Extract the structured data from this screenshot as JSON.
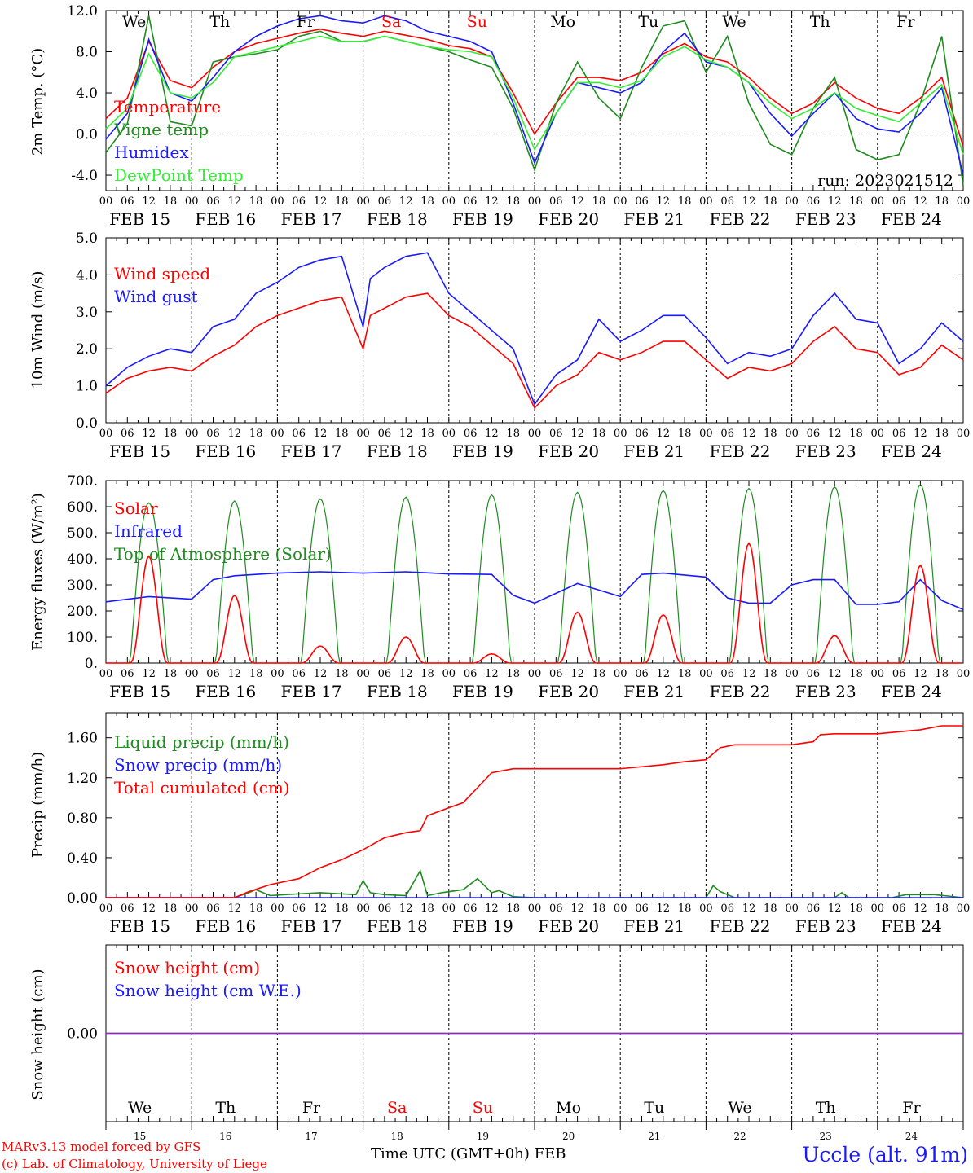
{
  "days": [
    {
      "date": "FEB 15",
      "weekday": "We",
      "day_num": "15",
      "weekend": false
    },
    {
      "date": "FEB 16",
      "weekday": "Th",
      "day_num": "16",
      "weekend": false
    },
    {
      "date": "FEB 17",
      "weekday": "Fr",
      "day_num": "17",
      "weekend": false
    },
    {
      "date": "FEB 18",
      "weekday": "Sa",
      "day_num": "18",
      "weekend": true
    },
    {
      "date": "FEB 19",
      "weekday": "Su",
      "day_num": "19",
      "weekend": true
    },
    {
      "date": "FEB 20",
      "weekday": "Mo",
      "day_num": "20",
      "weekend": false
    },
    {
      "date": "FEB 21",
      "weekday": "Tu",
      "day_num": "21",
      "weekend": false
    },
    {
      "date": "FEB 22",
      "weekday": "We",
      "day_num": "22",
      "weekend": false
    },
    {
      "date": "FEB 23",
      "weekday": "Th",
      "day_num": "23",
      "weekend": false
    },
    {
      "date": "FEB 24",
      "weekday": "Fr",
      "day_num": "24",
      "weekend": false
    }
  ],
  "hour_ticks": [
    "00",
    "06",
    "12",
    "18"
  ],
  "colors": {
    "red": "#ff0000",
    "green": "#1e8c1e",
    "blue": "#1a1aff",
    "lightgreen": "#33ee33",
    "purple": "#8a2ebe",
    "weekend": "#ff0000",
    "axis": "#000000"
  },
  "footer": {
    "credit_line1": "MARv3.13 model forced by GFS",
    "credit_line2": "(c) Lab. of Climatology, University of Liege",
    "xaxis_title": "Time UTC (GMT+0h)",
    "month": "FEB",
    "station": "Uccle (alt. 91m)"
  },
  "chart_data": [
    {
      "id": "temperature",
      "type": "line",
      "ylabel": "2m Temp. (°C)",
      "ylim": [
        -5.5,
        12.0
      ],
      "yticks": [
        "12.0",
        "8.0",
        "4.0",
        "0.0",
        "-4.0"
      ],
      "ytick_values": [
        12,
        8,
        4,
        0,
        -4
      ],
      "zero_line": true,
      "annotation": "run: 2023021512",
      "x_unit": "hours since FEB 15 00 UTC",
      "series": [
        {
          "name": "Temperature",
          "color": "#ff0000",
          "x": [
            0,
            6,
            12,
            18,
            24,
            30,
            36,
            42,
            48,
            54,
            60,
            66,
            72,
            78,
            84,
            90,
            96,
            102,
            108,
            114,
            120,
            126,
            132,
            138,
            144,
            150,
            156,
            162,
            168,
            174,
            180,
            186,
            192,
            198,
            204,
            210,
            216,
            222,
            228,
            234,
            240
          ],
          "y": [
            1.5,
            3.5,
            9.0,
            5.2,
            4.5,
            6.5,
            8.0,
            8.8,
            9.3,
            9.8,
            10.2,
            9.8,
            9.5,
            10.0,
            9.6,
            9.2,
            8.6,
            8.3,
            7.5,
            4.0,
            0.0,
            3.0,
            5.5,
            5.5,
            5.2,
            6.0,
            7.8,
            8.8,
            7.5,
            7.0,
            5.5,
            3.5,
            2.0,
            3.0,
            5.0,
            3.5,
            2.5,
            2.0,
            3.5,
            5.5,
            -1.2
          ]
        },
        {
          "name": "Vigne temp",
          "color": "#1e8c1e",
          "x": [
            0,
            6,
            12,
            18,
            24,
            30,
            36,
            42,
            48,
            54,
            60,
            66,
            72,
            78,
            84,
            90,
            96,
            102,
            108,
            114,
            120,
            126,
            132,
            138,
            144,
            150,
            156,
            162,
            168,
            174,
            180,
            186,
            192,
            198,
            204,
            210,
            216,
            222,
            228,
            234,
            240
          ],
          "y": [
            -1.8,
            1.0,
            11.5,
            1.2,
            0.8,
            7.0,
            7.5,
            7.8,
            8.2,
            9.5,
            10.0,
            9.0,
            9.0,
            9.5,
            9.0,
            8.5,
            8.0,
            7.2,
            6.5,
            2.5,
            -3.5,
            3.0,
            7.0,
            3.5,
            1.5,
            6.5,
            10.5,
            11.0,
            6.0,
            9.5,
            3.0,
            -1.0,
            -2.0,
            2.5,
            5.5,
            -1.5,
            -2.5,
            -2.0,
            3.0,
            9.5,
            -5.0
          ]
        },
        {
          "name": "Humidex",
          "color": "#1a1aff",
          "x": [
            0,
            6,
            12,
            18,
            24,
            30,
            36,
            42,
            48,
            54,
            60,
            66,
            72,
            78,
            84,
            90,
            96,
            102,
            108,
            114,
            120,
            126,
            132,
            138,
            144,
            150,
            156,
            162,
            168,
            174,
            180,
            186,
            192,
            198,
            204,
            210,
            216,
            222,
            228,
            234,
            240
          ],
          "y": [
            -0.5,
            2.0,
            9.2,
            4.0,
            3.2,
            5.5,
            8.0,
            9.5,
            10.5,
            11.2,
            11.5,
            11.0,
            10.8,
            11.5,
            11.0,
            10.0,
            9.5,
            9.0,
            8.0,
            3.0,
            -2.8,
            2.0,
            5.0,
            4.5,
            4.0,
            5.0,
            8.0,
            9.8,
            7.0,
            6.5,
            5.0,
            2.0,
            -0.2,
            2.0,
            4.0,
            1.5,
            0.5,
            0.2,
            2.0,
            4.5,
            -4.0
          ]
        },
        {
          "name": "DewPoint Temp",
          "color": "#33ee33",
          "x": [
            0,
            6,
            12,
            18,
            24,
            30,
            36,
            42,
            48,
            54,
            60,
            66,
            72,
            78,
            84,
            90,
            96,
            102,
            108,
            114,
            120,
            126,
            132,
            138,
            144,
            150,
            156,
            162,
            168,
            174,
            180,
            186,
            192,
            198,
            204,
            210,
            216,
            222,
            228,
            234,
            240
          ],
          "y": [
            0.5,
            2.5,
            7.8,
            4.0,
            3.5,
            5.0,
            7.5,
            8.0,
            8.5,
            9.0,
            9.5,
            9.0,
            9.0,
            9.5,
            9.0,
            8.5,
            8.2,
            8.0,
            7.5,
            3.5,
            -1.5,
            2.0,
            5.0,
            5.0,
            4.5,
            5.2,
            7.5,
            8.5,
            7.2,
            6.5,
            5.0,
            3.0,
            1.5,
            2.5,
            4.0,
            2.5,
            1.8,
            1.2,
            3.0,
            4.8,
            -2.0
          ]
        }
      ]
    },
    {
      "id": "wind",
      "type": "line",
      "ylabel": "10m Wind (m/s)",
      "ylim": [
        0,
        5.0
      ],
      "yticks": [
        "5.0",
        "4.0",
        "3.0",
        "2.0",
        "1.0",
        "0.0"
      ],
      "ytick_values": [
        5,
        4,
        3,
        2,
        1,
        0
      ],
      "x_unit": "hours since FEB 15 00 UTC",
      "series": [
        {
          "name": "Wind speed",
          "color": "#ff0000",
          "x": [
            0,
            6,
            12,
            18,
            24,
            30,
            36,
            42,
            48,
            54,
            60,
            66,
            72,
            74,
            78,
            84,
            90,
            96,
            102,
            108,
            114,
            120,
            126,
            132,
            138,
            144,
            150,
            156,
            162,
            168,
            174,
            180,
            186,
            192,
            198,
            204,
            210,
            216,
            222,
            228,
            234,
            240
          ],
          "y": [
            0.8,
            1.2,
            1.4,
            1.5,
            1.4,
            1.8,
            2.1,
            2.6,
            2.9,
            3.1,
            3.3,
            3.4,
            2.0,
            2.9,
            3.1,
            3.4,
            3.5,
            2.9,
            2.6,
            2.1,
            1.6,
            0.4,
            1.0,
            1.3,
            1.9,
            1.7,
            1.9,
            2.2,
            2.2,
            1.7,
            1.2,
            1.5,
            1.4,
            1.6,
            2.2,
            2.6,
            2.0,
            1.9,
            1.3,
            1.5,
            2.1,
            1.7
          ]
        },
        {
          "name": "Wind gust",
          "color": "#1a1aff",
          "x": [
            0,
            6,
            12,
            18,
            24,
            30,
            36,
            42,
            48,
            54,
            60,
            66,
            72,
            74,
            78,
            84,
            90,
            96,
            102,
            108,
            114,
            120,
            126,
            132,
            138,
            144,
            150,
            156,
            162,
            168,
            174,
            180,
            186,
            192,
            198,
            204,
            210,
            216,
            222,
            228,
            234,
            240
          ],
          "y": [
            1.0,
            1.5,
            1.8,
            2.0,
            1.9,
            2.6,
            2.8,
            3.5,
            3.8,
            4.2,
            4.4,
            4.5,
            2.6,
            3.9,
            4.2,
            4.5,
            4.6,
            3.5,
            3.0,
            2.5,
            2.0,
            0.5,
            1.3,
            1.7,
            2.8,
            2.2,
            2.5,
            2.9,
            2.9,
            2.3,
            1.6,
            1.9,
            1.8,
            2.0,
            2.9,
            3.5,
            2.8,
            2.7,
            1.6,
            2.0,
            2.7,
            2.2
          ]
        }
      ]
    },
    {
      "id": "energy",
      "type": "line",
      "ylabel": "Energy fluxes (W/m²)",
      "ylim": [
        0,
        700
      ],
      "yticks": [
        "700.",
        "600.",
        "500.",
        "400.",
        "300.",
        "200.",
        "100.",
        "0."
      ],
      "ytick_values": [
        700,
        600,
        500,
        400,
        300,
        200,
        100,
        0
      ],
      "x_unit": "hours since FEB 15 00 UTC",
      "solar_day_peaks": [
        410,
        260,
        65,
        100,
        35,
        195,
        185,
        460,
        105,
        375
      ],
      "toa_day_peaks": [
        615,
        622,
        630,
        637,
        645,
        655,
        662,
        670,
        676,
        684
      ],
      "daylight_hours": [
        6.8,
        17.2
      ],
      "series": [
        {
          "name": "Solar",
          "color": "#ff0000"
        },
        {
          "name": "Infrared",
          "color": "#1a1aff",
          "x": [
            0,
            12,
            24,
            30,
            36,
            42,
            48,
            60,
            72,
            84,
            96,
            108,
            114,
            120,
            132,
            144,
            150,
            156,
            168,
            174,
            180,
            186,
            192,
            198,
            204,
            210,
            216,
            222,
            228,
            234,
            240
          ],
          "y": [
            235,
            255,
            245,
            320,
            335,
            340,
            345,
            350,
            345,
            350,
            342,
            340,
            260,
            230,
            305,
            255,
            340,
            345,
            330,
            250,
            230,
            230,
            300,
            320,
            320,
            225,
            225,
            235,
            320,
            240,
            205
          ]
        },
        {
          "name": "Top of Atmosphere (Solar)",
          "color": "#1e8c1e"
        }
      ]
    },
    {
      "id": "precip",
      "type": "line",
      "ylabel": "Precip (mm/h)",
      "ylim": [
        0,
        1.85
      ],
      "yticks": [
        "1.60",
        "1.20",
        "0.80",
        "0.40",
        "0.00"
      ],
      "ytick_values": [
        1.6,
        1.2,
        0.8,
        0.4,
        0
      ],
      "x_unit": "hours since FEB 15 00 UTC",
      "series": [
        {
          "name": "Liquid precip (mm/h)",
          "color": "#1e8c1e",
          "x": [
            0,
            36,
            40,
            42,
            46,
            50,
            60,
            70,
            72,
            74,
            78,
            84,
            88,
            90,
            94,
            100,
            104,
            108,
            110,
            114,
            120,
            168,
            170,
            172,
            176,
            204,
            206,
            208,
            220,
            224,
            232,
            240
          ],
          "y": [
            0,
            0,
            0.05,
            0.08,
            0.02,
            0.03,
            0.05,
            0.03,
            0.17,
            0.05,
            0.03,
            0.02,
            0.27,
            0.02,
            0.05,
            0.08,
            0.19,
            0.05,
            0.07,
            0.01,
            0,
            0,
            0.12,
            0.06,
            0,
            0,
            0.05,
            0,
            0,
            0.03,
            0.03,
            0
          ]
        },
        {
          "name": "Snow precip (mm/h)",
          "color": "#1a1aff",
          "x": [
            0,
            240
          ],
          "y": [
            0,
            0
          ]
        },
        {
          "name": "Total cumulated (cm)",
          "color": "#ff0000",
          "x": [
            0,
            36,
            40,
            46,
            54,
            60,
            66,
            72,
            78,
            84,
            88,
            90,
            96,
            100,
            104,
            108,
            114,
            120,
            132,
            144,
            156,
            162,
            168,
            172,
            176,
            180,
            192,
            198,
            200,
            204,
            216,
            228,
            234,
            240
          ],
          "y": [
            0,
            0,
            0.06,
            0.13,
            0.19,
            0.3,
            0.38,
            0.48,
            0.6,
            0.65,
            0.67,
            0.82,
            0.9,
            0.95,
            1.1,
            1.25,
            1.29,
            1.29,
            1.29,
            1.29,
            1.33,
            1.36,
            1.38,
            1.5,
            1.53,
            1.53,
            1.53,
            1.56,
            1.63,
            1.64,
            1.64,
            1.68,
            1.72,
            1.72
          ]
        }
      ]
    },
    {
      "id": "snow",
      "type": "line",
      "ylabel": "Snow height (cm)",
      "ylim": [
        -1,
        1
      ],
      "yticks": [
        "0.00"
      ],
      "ytick_values": [
        0
      ],
      "x_unit": "hours since FEB 15 00 UTC",
      "series": [
        {
          "name": "Snow height (cm)",
          "color": "#ff0000",
          "x": [
            0,
            240
          ],
          "y": [
            0,
            0
          ]
        },
        {
          "name": "Snow height (cm W.E.)",
          "color": "#1a1aff",
          "x": [
            0,
            240
          ],
          "y": [
            0,
            0
          ]
        }
      ]
    }
  ]
}
